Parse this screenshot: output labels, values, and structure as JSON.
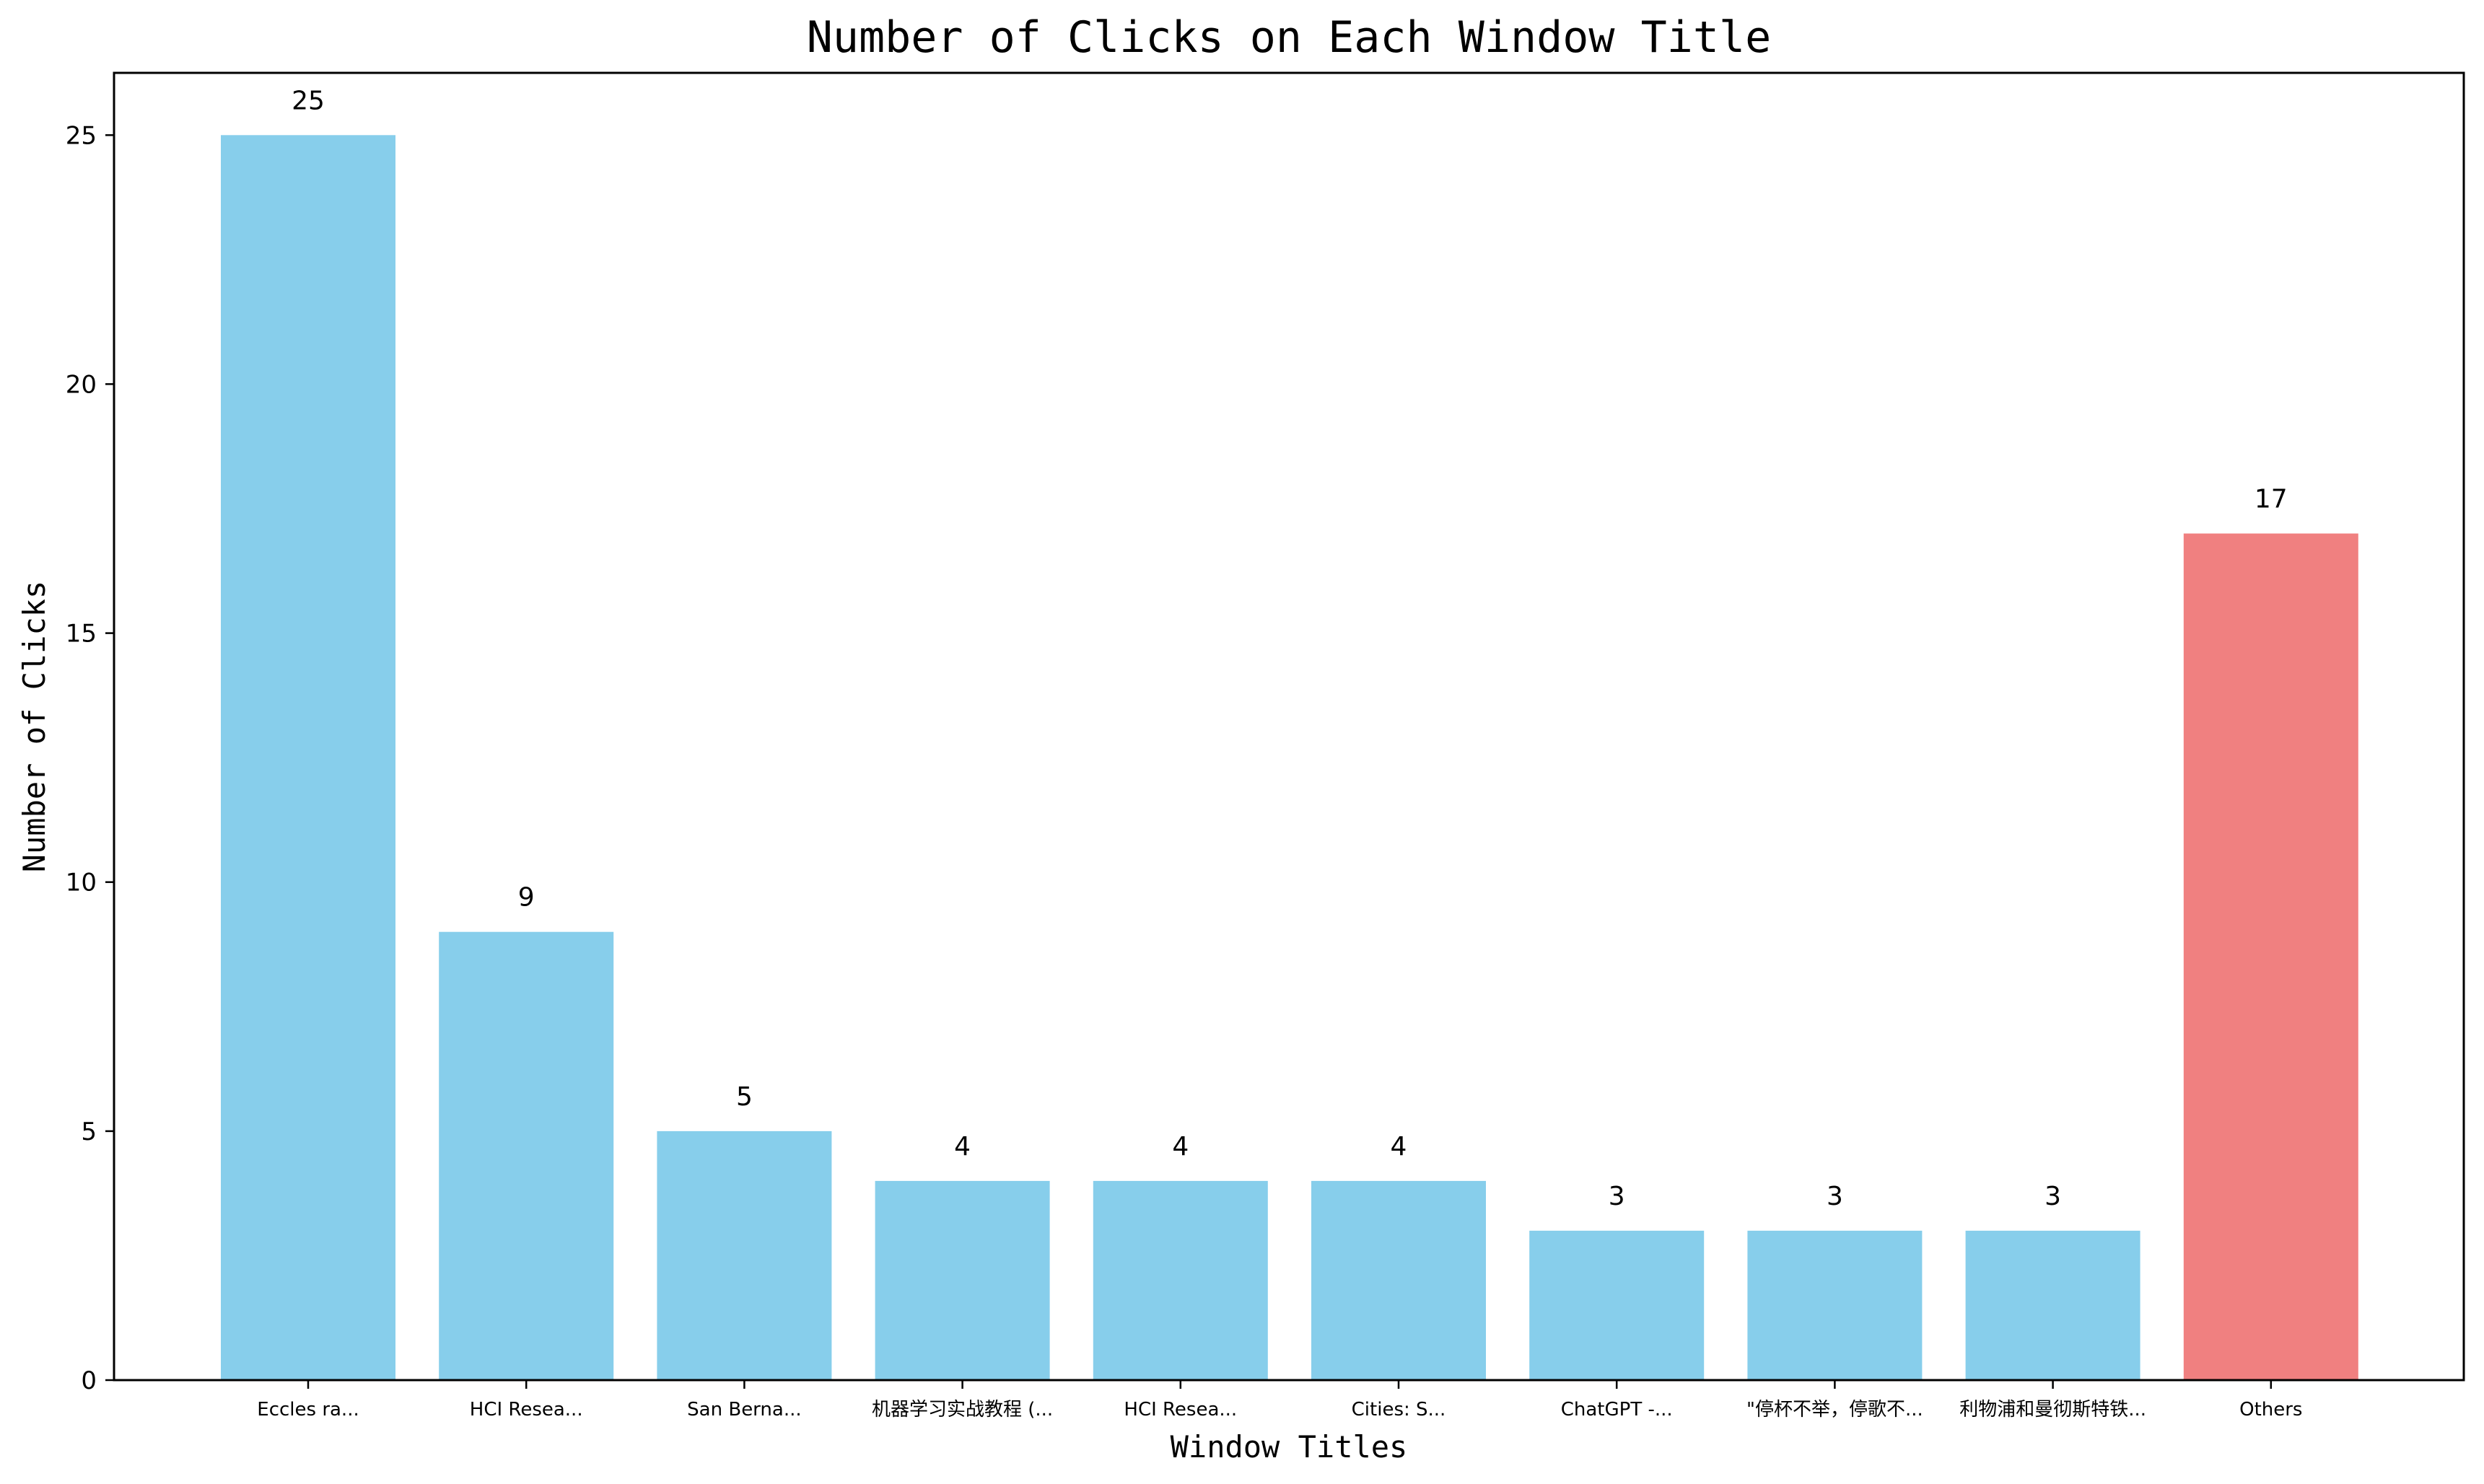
{
  "chart_data": {
    "type": "bar",
    "title": "Number of Clicks on Each Window Title",
    "xlabel": "Window Titles",
    "ylabel": "Number of Clicks",
    "categories": [
      "Eccles ra...",
      "HCI Resea...",
      "San Berna...",
      "机器学习实战教程 (...",
      "HCI Resea...",
      "Cities: S...",
      "ChatGPT -...",
      "\"停杯不举，停歌不...",
      "利物浦和曼彻斯特铁...",
      "Others"
    ],
    "values": [
      25,
      9,
      5,
      4,
      4,
      4,
      3,
      3,
      3,
      17
    ],
    "colors": [
      "#87CEEB",
      "#87CEEB",
      "#87CEEB",
      "#87CEEB",
      "#87CEEB",
      "#87CEEB",
      "#87CEEB",
      "#87CEEB",
      "#87CEEB",
      "#F08080"
    ],
    "data_labels": [
      "25",
      "9",
      "5",
      "4",
      "4",
      "4",
      "3",
      "3",
      "3",
      "17"
    ],
    "ylim": [
      0,
      26.25
    ],
    "yticks": [
      0,
      5,
      10,
      15,
      20,
      25
    ],
    "ytick_labels": [
      "0",
      "5",
      "10",
      "15",
      "20",
      "25"
    ],
    "grid": false,
    "legend": "none"
  }
}
